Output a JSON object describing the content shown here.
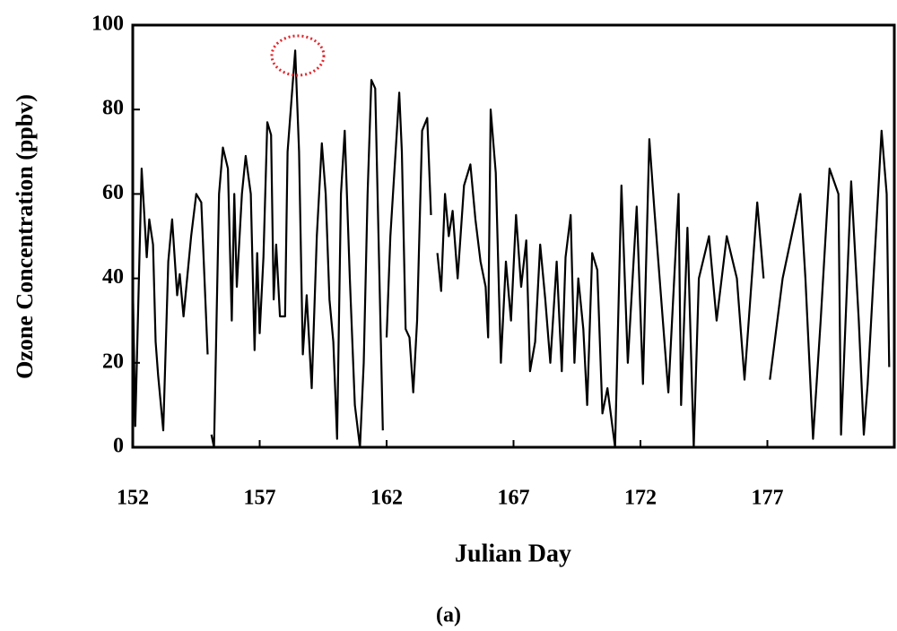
{
  "chart_data": {
    "type": "line",
    "ylabel": "Ozone Concentration (ppbv)",
    "xlabel": "Julian Day",
    "caption": "(a)",
    "color": "#000000",
    "xlim": [
      152,
      182
    ],
    "xticks": [
      152,
      157,
      162,
      167,
      172,
      177
    ],
    "ylim": [
      0,
      100
    ],
    "yticks": [
      0,
      20,
      40,
      60,
      80,
      100
    ],
    "x": [
      152.0,
      152.1,
      152.35,
      152.55,
      152.65,
      152.8,
      152.9,
      153.0,
      153.2,
      153.4,
      153.55,
      153.75,
      153.85,
      154.0,
      154.3,
      154.5,
      154.7,
      154.95,
      155.02,
      155.1,
      155.2,
      155.4,
      155.55,
      155.75,
      155.9,
      156.0,
      156.1,
      156.3,
      156.45,
      156.65,
      156.8,
      156.9,
      157.0,
      157.15,
      157.3,
      157.45,
      157.55,
      157.65,
      157.8,
      158.0,
      158.1,
      158.4,
      158.55,
      158.7,
      158.85,
      159.05,
      159.25,
      159.45,
      159.6,
      159.75,
      159.9,
      160.05,
      160.2,
      160.35,
      160.55,
      160.75,
      160.95,
      161.1,
      161.25,
      161.4,
      161.55,
      161.7,
      161.85,
      161.92,
      162.0,
      162.15,
      162.5,
      162.6,
      162.75,
      162.9,
      163.05,
      163.2,
      163.4,
      163.6,
      163.75,
      163.85,
      164.0,
      164.15,
      164.3,
      164.45,
      164.6,
      164.8,
      165.05,
      165.3,
      165.5,
      165.7,
      165.9,
      166.0,
      166.1,
      166.3,
      166.5,
      166.7,
      166.9,
      167.1,
      167.3,
      167.5,
      167.65,
      167.85,
      168.05,
      168.25,
      168.45,
      168.7,
      168.9,
      169.05,
      169.25,
      169.4,
      169.55,
      169.75,
      169.9,
      170.1,
      170.3,
      170.5,
      170.7,
      171.0,
      171.25,
      171.5,
      171.85,
      172.1,
      172.35,
      172.55,
      173.1,
      173.5,
      173.6,
      173.85,
      174.1,
      174.3,
      174.7,
      175.0,
      175.4,
      175.8,
      176.1,
      176.6,
      176.85,
      176.95,
      177.1,
      177.6,
      178.3,
      178.5,
      178.8,
      179.1,
      179.45,
      179.8,
      179.9,
      180.3,
      180.6,
      180.8,
      180.95,
      181.5,
      181.7,
      181.8
    ],
    "values": [
      40,
      5,
      66,
      45,
      54,
      48,
      25,
      17,
      4,
      44,
      54,
      36,
      41,
      31,
      50,
      60,
      58,
      22,
      null,
      3,
      0,
      60,
      71,
      66,
      30,
      60,
      38,
      60,
      69,
      60,
      23,
      46,
      27,
      45,
      77,
      74,
      35,
      48,
      31,
      31,
      70,
      94,
      70,
      22,
      36,
      14,
      50,
      72,
      60,
      35,
      25,
      2,
      60,
      75,
      40,
      10,
      0,
      20,
      60,
      87,
      85,
      45,
      4,
      null,
      26,
      50,
      84,
      70,
      28,
      26,
      13,
      30,
      75,
      78,
      55,
      null,
      46,
      37,
      60,
      50,
      56,
      40,
      62,
      67,
      54,
      44,
      38,
      26,
      80,
      65,
      20,
      44,
      30,
      55,
      38,
      49,
      18,
      25,
      48,
      35,
      20,
      44,
      18,
      45,
      55,
      20,
      40,
      28,
      10,
      46,
      42,
      8,
      14,
      0,
      62,
      20,
      57,
      15,
      73,
      56,
      13,
      60,
      10,
      52,
      0,
      40,
      50,
      30,
      50,
      40,
      16,
      58,
      40,
      null,
      16,
      40,
      60,
      40,
      2,
      30,
      66,
      60,
      3,
      63,
      30,
      3,
      15,
      75,
      60,
      19
    ]
  }
}
